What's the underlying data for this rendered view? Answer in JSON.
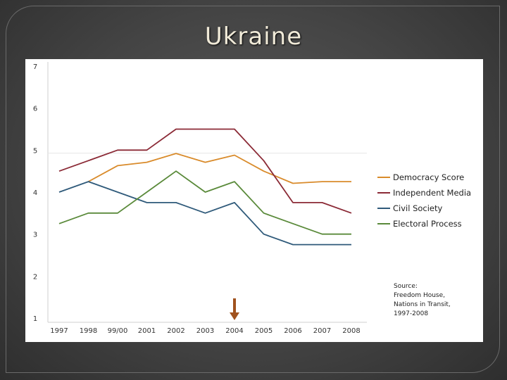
{
  "slide": {
    "title": "Ukraine"
  },
  "chart_data": {
    "type": "line",
    "categories": [
      "1997",
      "1998",
      "99/00",
      "2001",
      "2002",
      "2003",
      "2004",
      "2005",
      "2006",
      "2007",
      "2008"
    ],
    "ylim": [
      1,
      7
    ],
    "yticks": [
      1,
      2,
      3,
      4,
      5,
      6,
      7
    ],
    "grid": false,
    "legend_position": "right",
    "series": [
      {
        "name": "Democracy Score",
        "color": "#d98b2b",
        "values": [
          null,
          4.25,
          4.63,
          4.71,
          4.92,
          4.71,
          4.88,
          4.5,
          4.21,
          4.25,
          4.25
        ]
      },
      {
        "name": "Independent Media",
        "color": "#8b2a36",
        "values": [
          4.5,
          4.75,
          5.0,
          5.0,
          5.5,
          5.5,
          5.5,
          4.75,
          3.75,
          3.75,
          3.5
        ]
      },
      {
        "name": "Civil Society",
        "color": "#2f5a7a",
        "values": [
          4.0,
          4.25,
          4.0,
          3.75,
          3.75,
          3.5,
          3.75,
          3.0,
          2.75,
          2.75,
          2.75
        ]
      },
      {
        "name": "Electoral Process",
        "color": "#5a8a3a",
        "values": [
          3.25,
          3.5,
          3.5,
          4.0,
          4.5,
          4.0,
          4.25,
          3.5,
          3.25,
          3.0,
          3.0
        ]
      }
    ],
    "annotations": {
      "arrow_category": "2004",
      "arrow_color": "#a0521e",
      "source_lines": [
        "Source:",
        "Freedom House,",
        "Nations in Transit,",
        "1997-2008"
      ]
    }
  }
}
